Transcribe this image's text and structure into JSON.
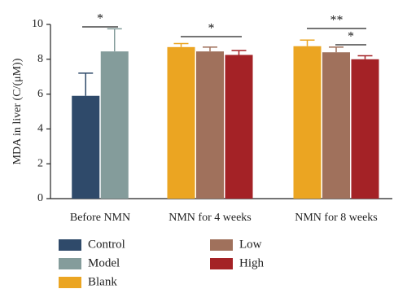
{
  "chart_data": {
    "type": "bar",
    "y_label": "MDA in liver (C/(μM))",
    "categories": [
      "Before NMN",
      "NMN for 4 weeks",
      "NMN for 8 weeks"
    ],
    "series": [
      {
        "name": "Control",
        "color": "#2f4a6a",
        "values": [
          5.9,
          null,
          null
        ],
        "errors": [
          1.3,
          null,
          null
        ]
      },
      {
        "name": "Model",
        "color": "#849c9b",
        "values": [
          8.45,
          null,
          null
        ],
        "errors": [
          1.3,
          null,
          null
        ]
      },
      {
        "name": "Blank",
        "color": "#eba522",
        "values": [
          null,
          8.7,
          8.75
        ],
        "errors": [
          null,
          0.2,
          0.35
        ]
      },
      {
        "name": "Low",
        "color": "#a0715c",
        "values": [
          null,
          8.45,
          8.4
        ],
        "errors": [
          null,
          0.25,
          0.3
        ]
      },
      {
        "name": "High",
        "color": "#a42226",
        "values": [
          null,
          8.25,
          8.0
        ],
        "errors": [
          null,
          0.25,
          0.2
        ]
      }
    ],
    "ylim": [
      0,
      10
    ],
    "yticks": [
      0,
      2,
      4,
      6,
      8,
      10
    ],
    "annotations": [
      {
        "text": "*"
      },
      {
        "text": "*"
      },
      {
        "text": "**"
      },
      {
        "text": "*"
      }
    ]
  }
}
